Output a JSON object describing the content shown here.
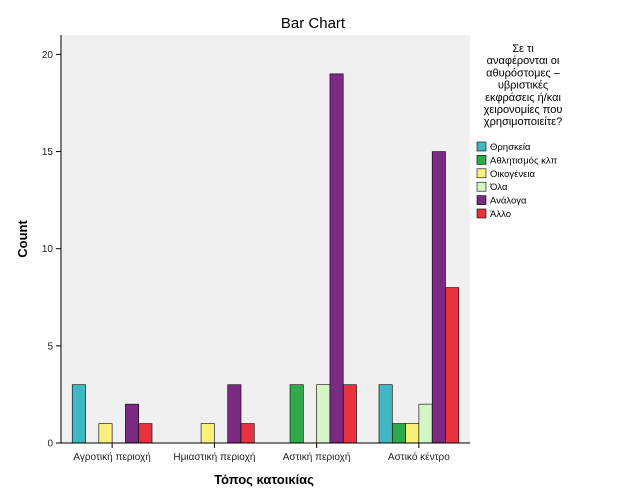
{
  "chart_data": {
    "type": "bar",
    "title": "Bar Chart",
    "xlabel": "Τόπος κατοικίας",
    "ylabel": "Count",
    "categories": [
      "Αγροτική περιοχή",
      "Ημιαστική περιοχή",
      "Αστική περιοχή",
      "Αστικό κέντρο"
    ],
    "ylim": [
      0,
      21
    ],
    "yticks": [
      0,
      5,
      10,
      15,
      20
    ],
    "grid": false,
    "legend_position": "right",
    "legend_title_lines": [
      "Σε τι",
      "αναφέρονται οι",
      "αθυρόστομες –",
      "υβριστικές",
      "εκφράσεις ή/και",
      "χειρονομίες που",
      "χρησιμοποιείτε?"
    ],
    "series": [
      {
        "name": "Θρησκεία",
        "color": "#3fb8c2",
        "values": [
          3,
          0,
          0,
          3
        ]
      },
      {
        "name": "Αθλητισμός κλπ",
        "color": "#2eaa4a",
        "values": [
          0,
          0,
          3,
          1
        ]
      },
      {
        "name": "Οικογένεια",
        "color": "#f7f07a",
        "values": [
          1,
          1,
          0,
          1
        ]
      },
      {
        "name": "Όλα",
        "color": "#d4f5c4",
        "values": [
          0,
          0,
          3,
          2
        ]
      },
      {
        "name": "Ανάλογα",
        "color": "#7a2a80",
        "values": [
          2,
          3,
          19,
          15
        ]
      },
      {
        "name": "Άλλο",
        "color": "#e8323e",
        "values": [
          1,
          1,
          3,
          8
        ]
      }
    ]
  },
  "colors": {
    "plot_background": "#f0f0f0",
    "axis": "#000000"
  }
}
